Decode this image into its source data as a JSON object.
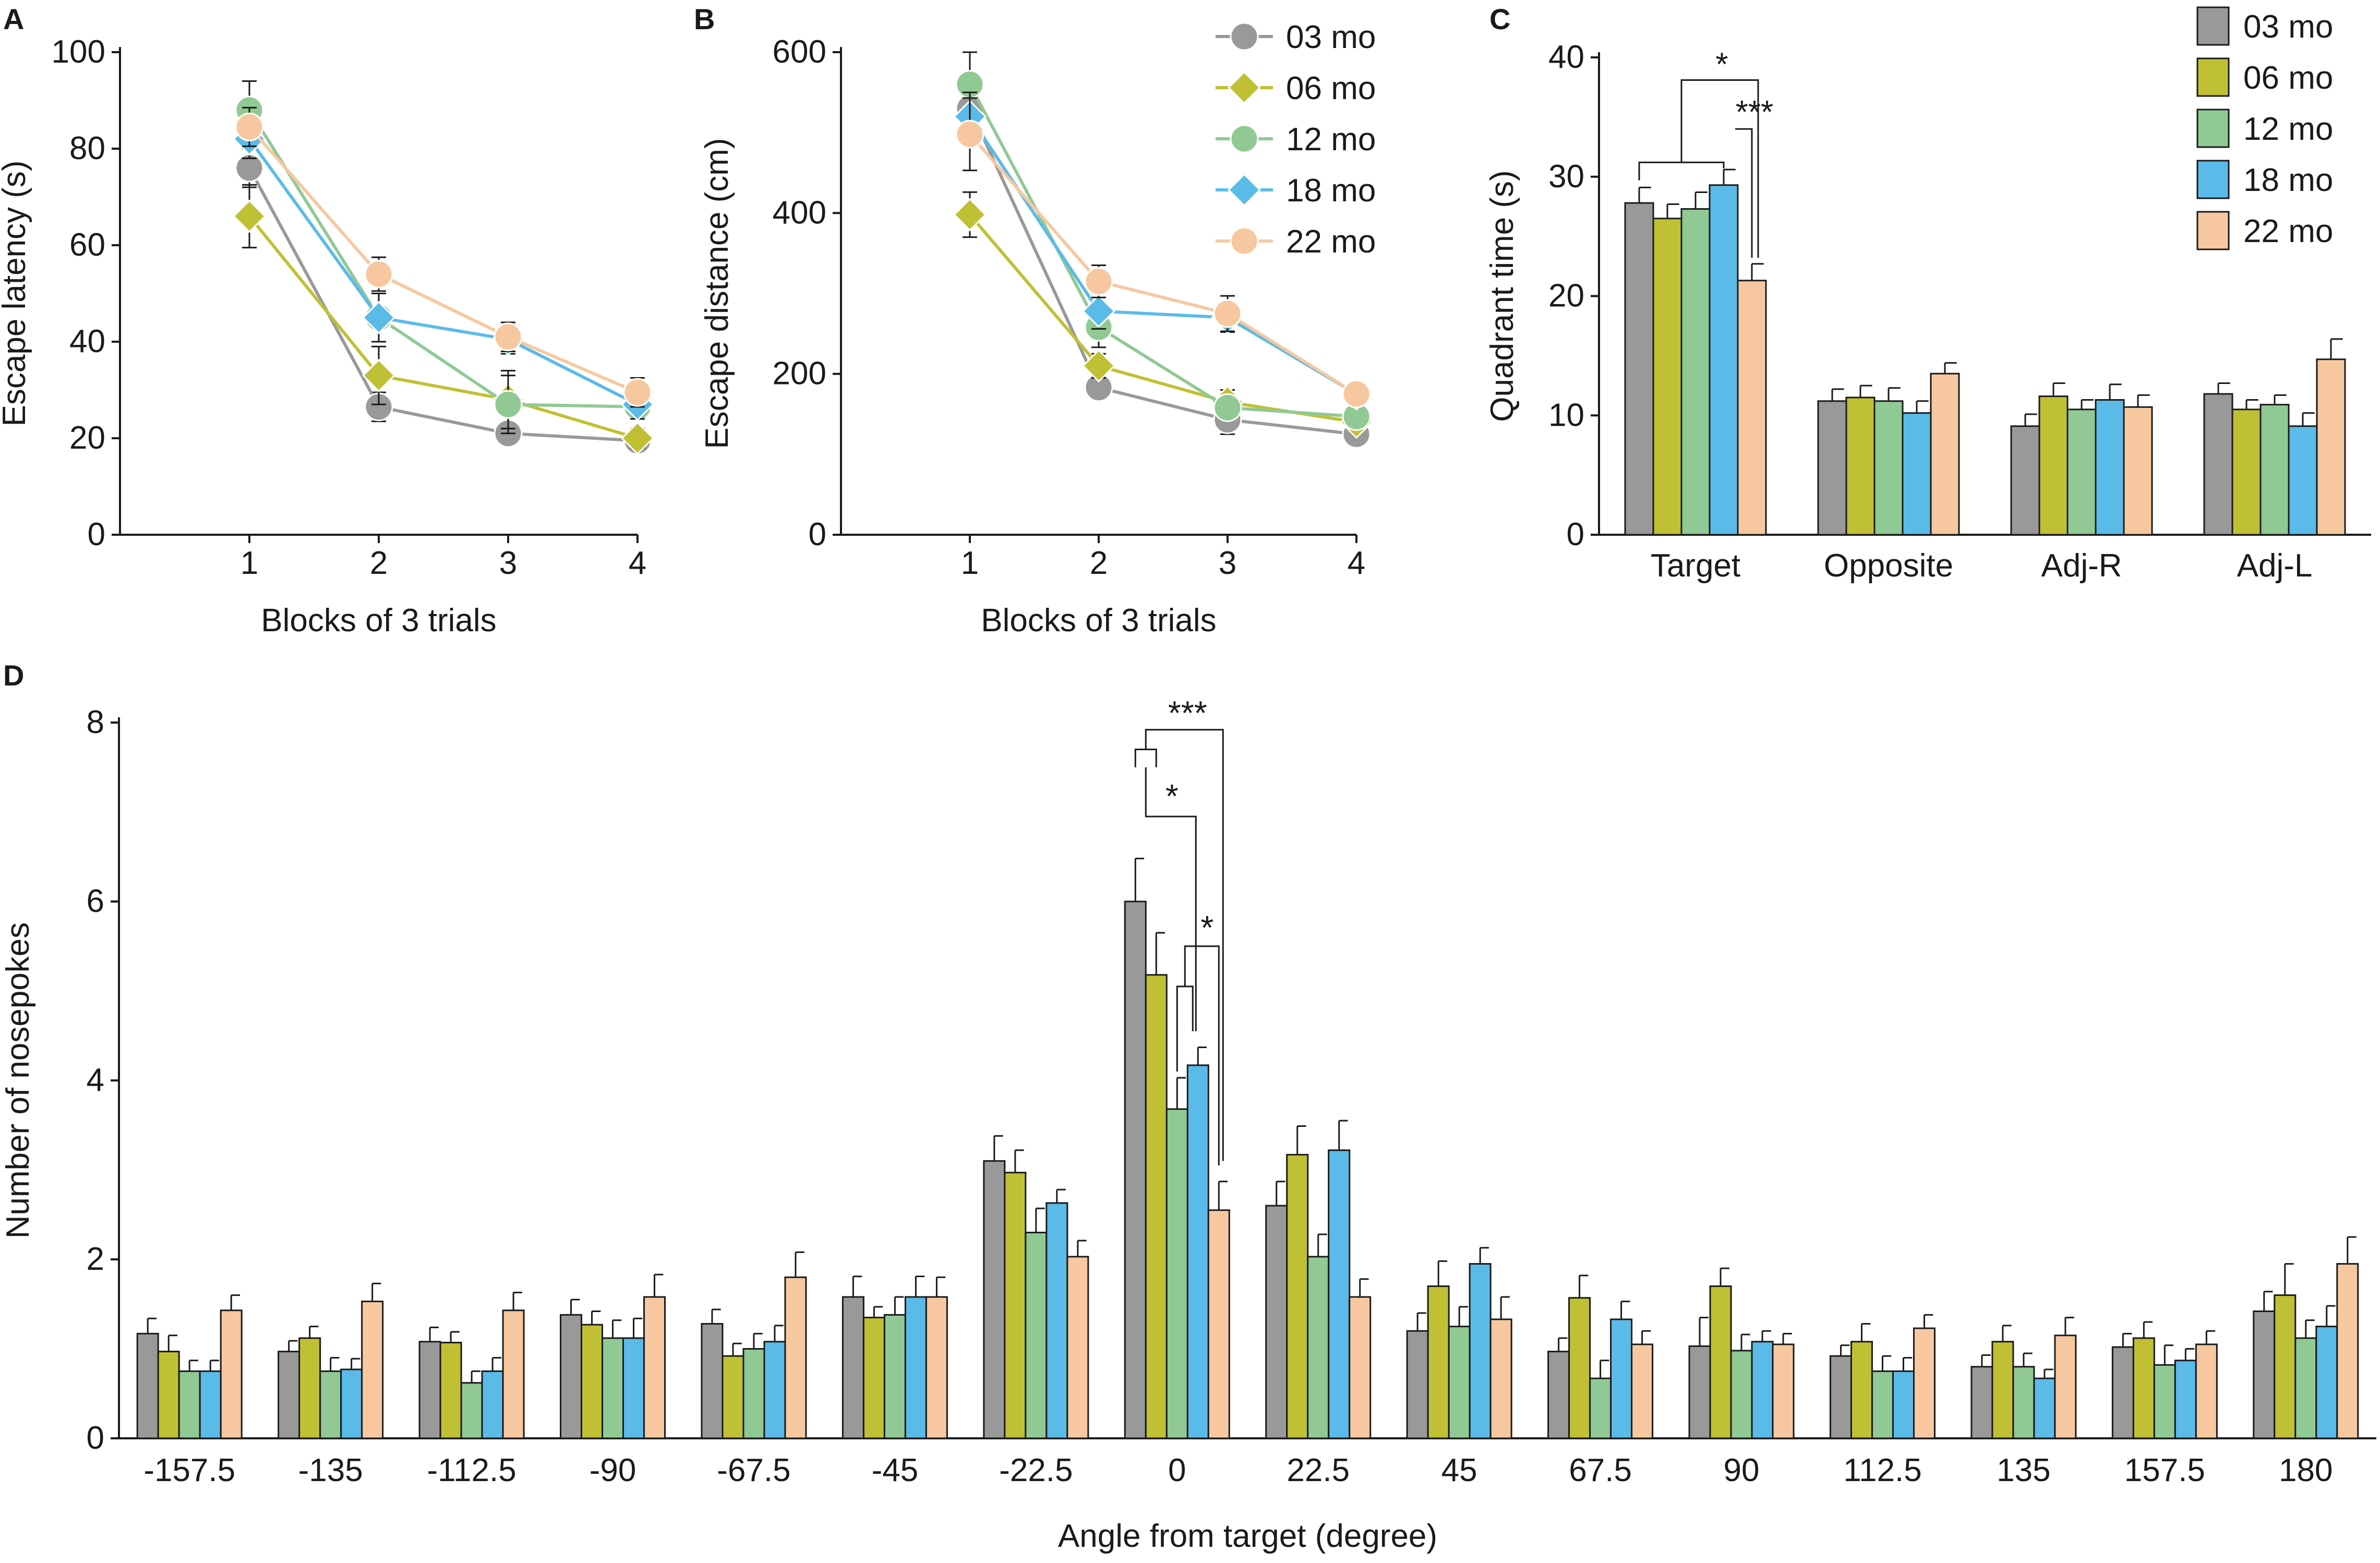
{
  "colors": {
    "03 mo": "#999999",
    "06 mo": "#c0c034",
    "12 mo": "#90c994",
    "18 mo": "#5bbbe8",
    "22 mo": "#f7c8a0",
    "axis": "#1a1a1a"
  },
  "chart_data": [
    {
      "panel": "A",
      "type": "line",
      "x": [
        1,
        2,
        3,
        4
      ],
      "xticks": [
        "1",
        "2",
        "3",
        "4"
      ],
      "xlim": [
        0,
        4
      ],
      "ylim": [
        0,
        100
      ],
      "yticks": [
        "0",
        "20",
        "40",
        "60",
        "80",
        "100"
      ],
      "xlabel": "Blocks of 3 trials",
      "ylabel": "Escape latency (s)",
      "series": [
        {
          "name": "03 mo",
          "marker": "circle",
          "values": [
            76,
            26.5,
            21,
            19.5
          ],
          "errors": [
            4,
            3,
            0,
            1.5
          ]
        },
        {
          "name": "06 mo",
          "marker": "diamond",
          "values": [
            66,
            33,
            28,
            20
          ],
          "errors": [
            6.5,
            6,
            6,
            2
          ]
        },
        {
          "name": "12 mo",
          "marker": "circle",
          "values": [
            88,
            45,
            27,
            26.5
          ],
          "errors": [
            6,
            5,
            6,
            2
          ]
        },
        {
          "name": "18 mo",
          "marker": "diamond",
          "values": [
            82,
            45,
            40.5,
            27
          ],
          "errors": [
            4,
            5,
            3,
            3
          ]
        },
        {
          "name": "22 mo",
          "marker": "circle",
          "values": [
            84.5,
            54,
            41,
            29.5
          ],
          "errors": [
            4,
            3.5,
            3,
            3
          ]
        }
      ]
    },
    {
      "panel": "B",
      "type": "line",
      "x": [
        1,
        2,
        3,
        4
      ],
      "xticks": [
        "1",
        "2",
        "3",
        "4"
      ],
      "xlim": [
        0,
        4
      ],
      "ylim": [
        0,
        600
      ],
      "yticks": [
        "0",
        "200",
        "400",
        "600"
      ],
      "xlabel": "Blocks of 3 trials",
      "ylabel": "Escape distance (cm)",
      "legend": [
        "03 mo",
        "06 mo",
        "12 mo",
        "18 mo",
        "22 mo"
      ],
      "series": [
        {
          "name": "03 mo",
          "marker": "circle",
          "values": [
            530,
            183,
            143,
            125
          ],
          "errors": [
            22,
            10,
            18,
            10
          ]
        },
        {
          "name": "06 mo",
          "marker": "diamond",
          "values": [
            398,
            210,
            165,
            140
          ],
          "errors": [
            28,
            15,
            15,
            10
          ]
        },
        {
          "name": "12 mo",
          "marker": "circle",
          "values": [
            560,
            258,
            158,
            147
          ],
          "errors": [
            40,
            25,
            12,
            12
          ]
        },
        {
          "name": "18 mo",
          "marker": "diamond",
          "values": [
            520,
            278,
            270,
            175
          ],
          "errors": [
            30,
            22,
            18,
            12
          ]
        },
        {
          "name": "22 mo",
          "marker": "circle",
          "values": [
            498,
            315,
            275,
            175
          ],
          "errors": [
            45,
            20,
            22,
            12
          ]
        }
      ]
    },
    {
      "panel": "C",
      "type": "bar",
      "categories": [
        "Target",
        "Opposite",
        "Adj-R",
        "Adj-L"
      ],
      "ylim": [
        0,
        40
      ],
      "yticks": [
        "0",
        "10",
        "20",
        "30",
        "40"
      ],
      "xlabel": "",
      "ylabel": "Quadrant time (s)",
      "legend": [
        "03 mo",
        "06 mo",
        "12 mo",
        "18 mo",
        "22 mo"
      ],
      "series": [
        {
          "name": "03 mo",
          "values": [
            27.8,
            11.2,
            9.1,
            11.8
          ],
          "errors": [
            1.3,
            1.0,
            1.0,
            0.9
          ]
        },
        {
          "name": "06 mo",
          "values": [
            26.5,
            11.5,
            11.6,
            10.5
          ],
          "errors": [
            1.2,
            1.0,
            1.1,
            0.8
          ]
        },
        {
          "name": "12 mo",
          "values": [
            27.3,
            11.2,
            10.5,
            10.9
          ],
          "errors": [
            1.4,
            1.1,
            0.8,
            0.8
          ]
        },
        {
          "name": "18 mo",
          "values": [
            29.3,
            10.2,
            11.3,
            9.1
          ],
          "errors": [
            1.3,
            1.0,
            1.3,
            1.1
          ]
        },
        {
          "name": "22 mo",
          "values": [
            21.3,
            13.5,
            10.7,
            14.7
          ],
          "errors": [
            1.4,
            0.9,
            1.0,
            1.7
          ]
        }
      ],
      "significance": [
        "*",
        "***"
      ]
    },
    {
      "panel": "D",
      "type": "bar",
      "categories": [
        "-157.5",
        "-135",
        "-112.5",
        "-90",
        "-67.5",
        "-45",
        "-22.5",
        "0",
        "22.5",
        "45",
        "67.5",
        "90",
        "112.5",
        "135",
        "157.5",
        "180"
      ],
      "ylim": [
        0,
        8
      ],
      "yticks": [
        "0",
        "2",
        "4",
        "6",
        "8"
      ],
      "xlabel": "Angle from target (degree)",
      "ylabel": "Number of nosepokes",
      "series": [
        {
          "name": "03 mo",
          "values": [
            1.17,
            0.97,
            1.08,
            1.38,
            1.28,
            1.58,
            3.1,
            6.0,
            2.6,
            1.2,
            0.97,
            1.03,
            0.92,
            0.8,
            1.02,
            1.42
          ],
          "errors": [
            0.17,
            0.12,
            0.16,
            0.17,
            0.16,
            0.23,
            0.28,
            0.48,
            0.27,
            0.2,
            0.15,
            0.32,
            0.12,
            0.13,
            0.15,
            0.22
          ]
        },
        {
          "name": "06 mo",
          "values": [
            0.97,
            1.12,
            1.07,
            1.27,
            0.92,
            1.35,
            2.97,
            5.18,
            3.17,
            1.7,
            1.57,
            1.7,
            1.08,
            1.08,
            1.12,
            1.6
          ],
          "errors": [
            0.18,
            0.13,
            0.12,
            0.15,
            0.14,
            0.12,
            0.25,
            0.47,
            0.32,
            0.28,
            0.25,
            0.2,
            0.2,
            0.18,
            0.18,
            0.35
          ]
        },
        {
          "name": "12 mo",
          "values": [
            0.75,
            0.75,
            0.62,
            1.12,
            1.0,
            1.38,
            2.3,
            3.68,
            2.03,
            1.25,
            0.67,
            0.98,
            0.75,
            0.8,
            0.82,
            1.12
          ],
          "errors": [
            0.12,
            0.15,
            0.13,
            0.2,
            0.17,
            0.2,
            0.27,
            0.35,
            0.25,
            0.22,
            0.2,
            0.18,
            0.17,
            0.15,
            0.22,
            0.2
          ]
        },
        {
          "name": "18 mo",
          "values": [
            0.75,
            0.77,
            0.75,
            1.12,
            1.08,
            1.58,
            2.63,
            4.17,
            3.22,
            1.95,
            1.33,
            1.08,
            0.75,
            0.67,
            0.87,
            1.25
          ],
          "errors": [
            0.12,
            0.12,
            0.15,
            0.22,
            0.18,
            0.23,
            0.15,
            0.2,
            0.33,
            0.18,
            0.2,
            0.12,
            0.15,
            0.1,
            0.13,
            0.23
          ]
        },
        {
          "name": "22 mo",
          "values": [
            1.43,
            1.53,
            1.43,
            1.58,
            1.8,
            1.58,
            2.03,
            2.55,
            1.58,
            1.33,
            1.05,
            1.05,
            1.23,
            1.15,
            1.05,
            1.95
          ],
          "errors": [
            0.17,
            0.2,
            0.2,
            0.25,
            0.28,
            0.22,
            0.18,
            0.32,
            0.2,
            0.25,
            0.15,
            0.12,
            0.15,
            0.2,
            0.15,
            0.3
          ]
        }
      ],
      "significance": [
        "***",
        "*",
        "*"
      ]
    }
  ],
  "panel_labels": {
    "a": "A",
    "b": "B",
    "c": "C",
    "d": "D"
  }
}
